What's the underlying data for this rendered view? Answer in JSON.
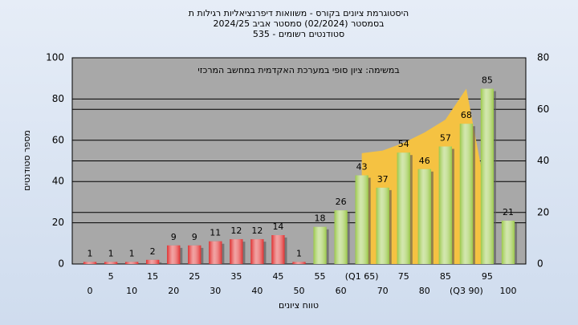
{
  "chart_data": {
    "type": "bar",
    "title": [
      "היסטוגרמת ציונים בקורס - משוואות דיפרנציאליות רגילות ת",
      "בסמסטר  (02/2024)  סמסטר אביב 2024/25",
      "סטודנטים רשומים - 535"
    ],
    "annotation": "במשימה: ציון סופי במערכת האקדמית במחשב המרכזי",
    "ylabel": "מספר סטודנטים",
    "xlabel": "טווח ציונים",
    "categories": [
      "0",
      "5",
      "10",
      "15",
      "20",
      "25",
      "30",
      "35",
      "40",
      "45",
      "50",
      "55",
      "60",
      "(Q1 65)",
      "70",
      "75",
      "80",
      "85",
      "(Q3 90)",
      "95",
      "100"
    ],
    "values": [
      1,
      1,
      1,
      2,
      9,
      9,
      11,
      12,
      12,
      14,
      1,
      18,
      26,
      43,
      37,
      54,
      46,
      57,
      68,
      85,
      21
    ],
    "colors": [
      "#e03030",
      "#e03030",
      "#e03030",
      "#e03030",
      "#e03030",
      "#e03030",
      "#e03030",
      "#e03030",
      "#e03030",
      "#e03030",
      "#e03030",
      "#9bc84a",
      "#9bc84a",
      "#9bc84a",
      "#9bc84a",
      "#9bc84a",
      "#9bc84a",
      "#9bc84a",
      "#9bc84a",
      "#9bc84a",
      "#9bc84a"
    ],
    "area": {
      "color": "#f5c242",
      "axis": "y2",
      "values": [
        null,
        null,
        null,
        null,
        null,
        null,
        null,
        null,
        null,
        null,
        null,
        null,
        null,
        43,
        44,
        47,
        51,
        56,
        68,
        25,
        null
      ]
    },
    "ylim": [
      0,
      100
    ],
    "yticks": [
      0,
      20,
      40,
      60,
      80,
      100
    ],
    "y2lim": [
      0,
      80
    ],
    "y2ticks": [
      0,
      20,
      40,
      60,
      80
    ],
    "grid": true
  }
}
